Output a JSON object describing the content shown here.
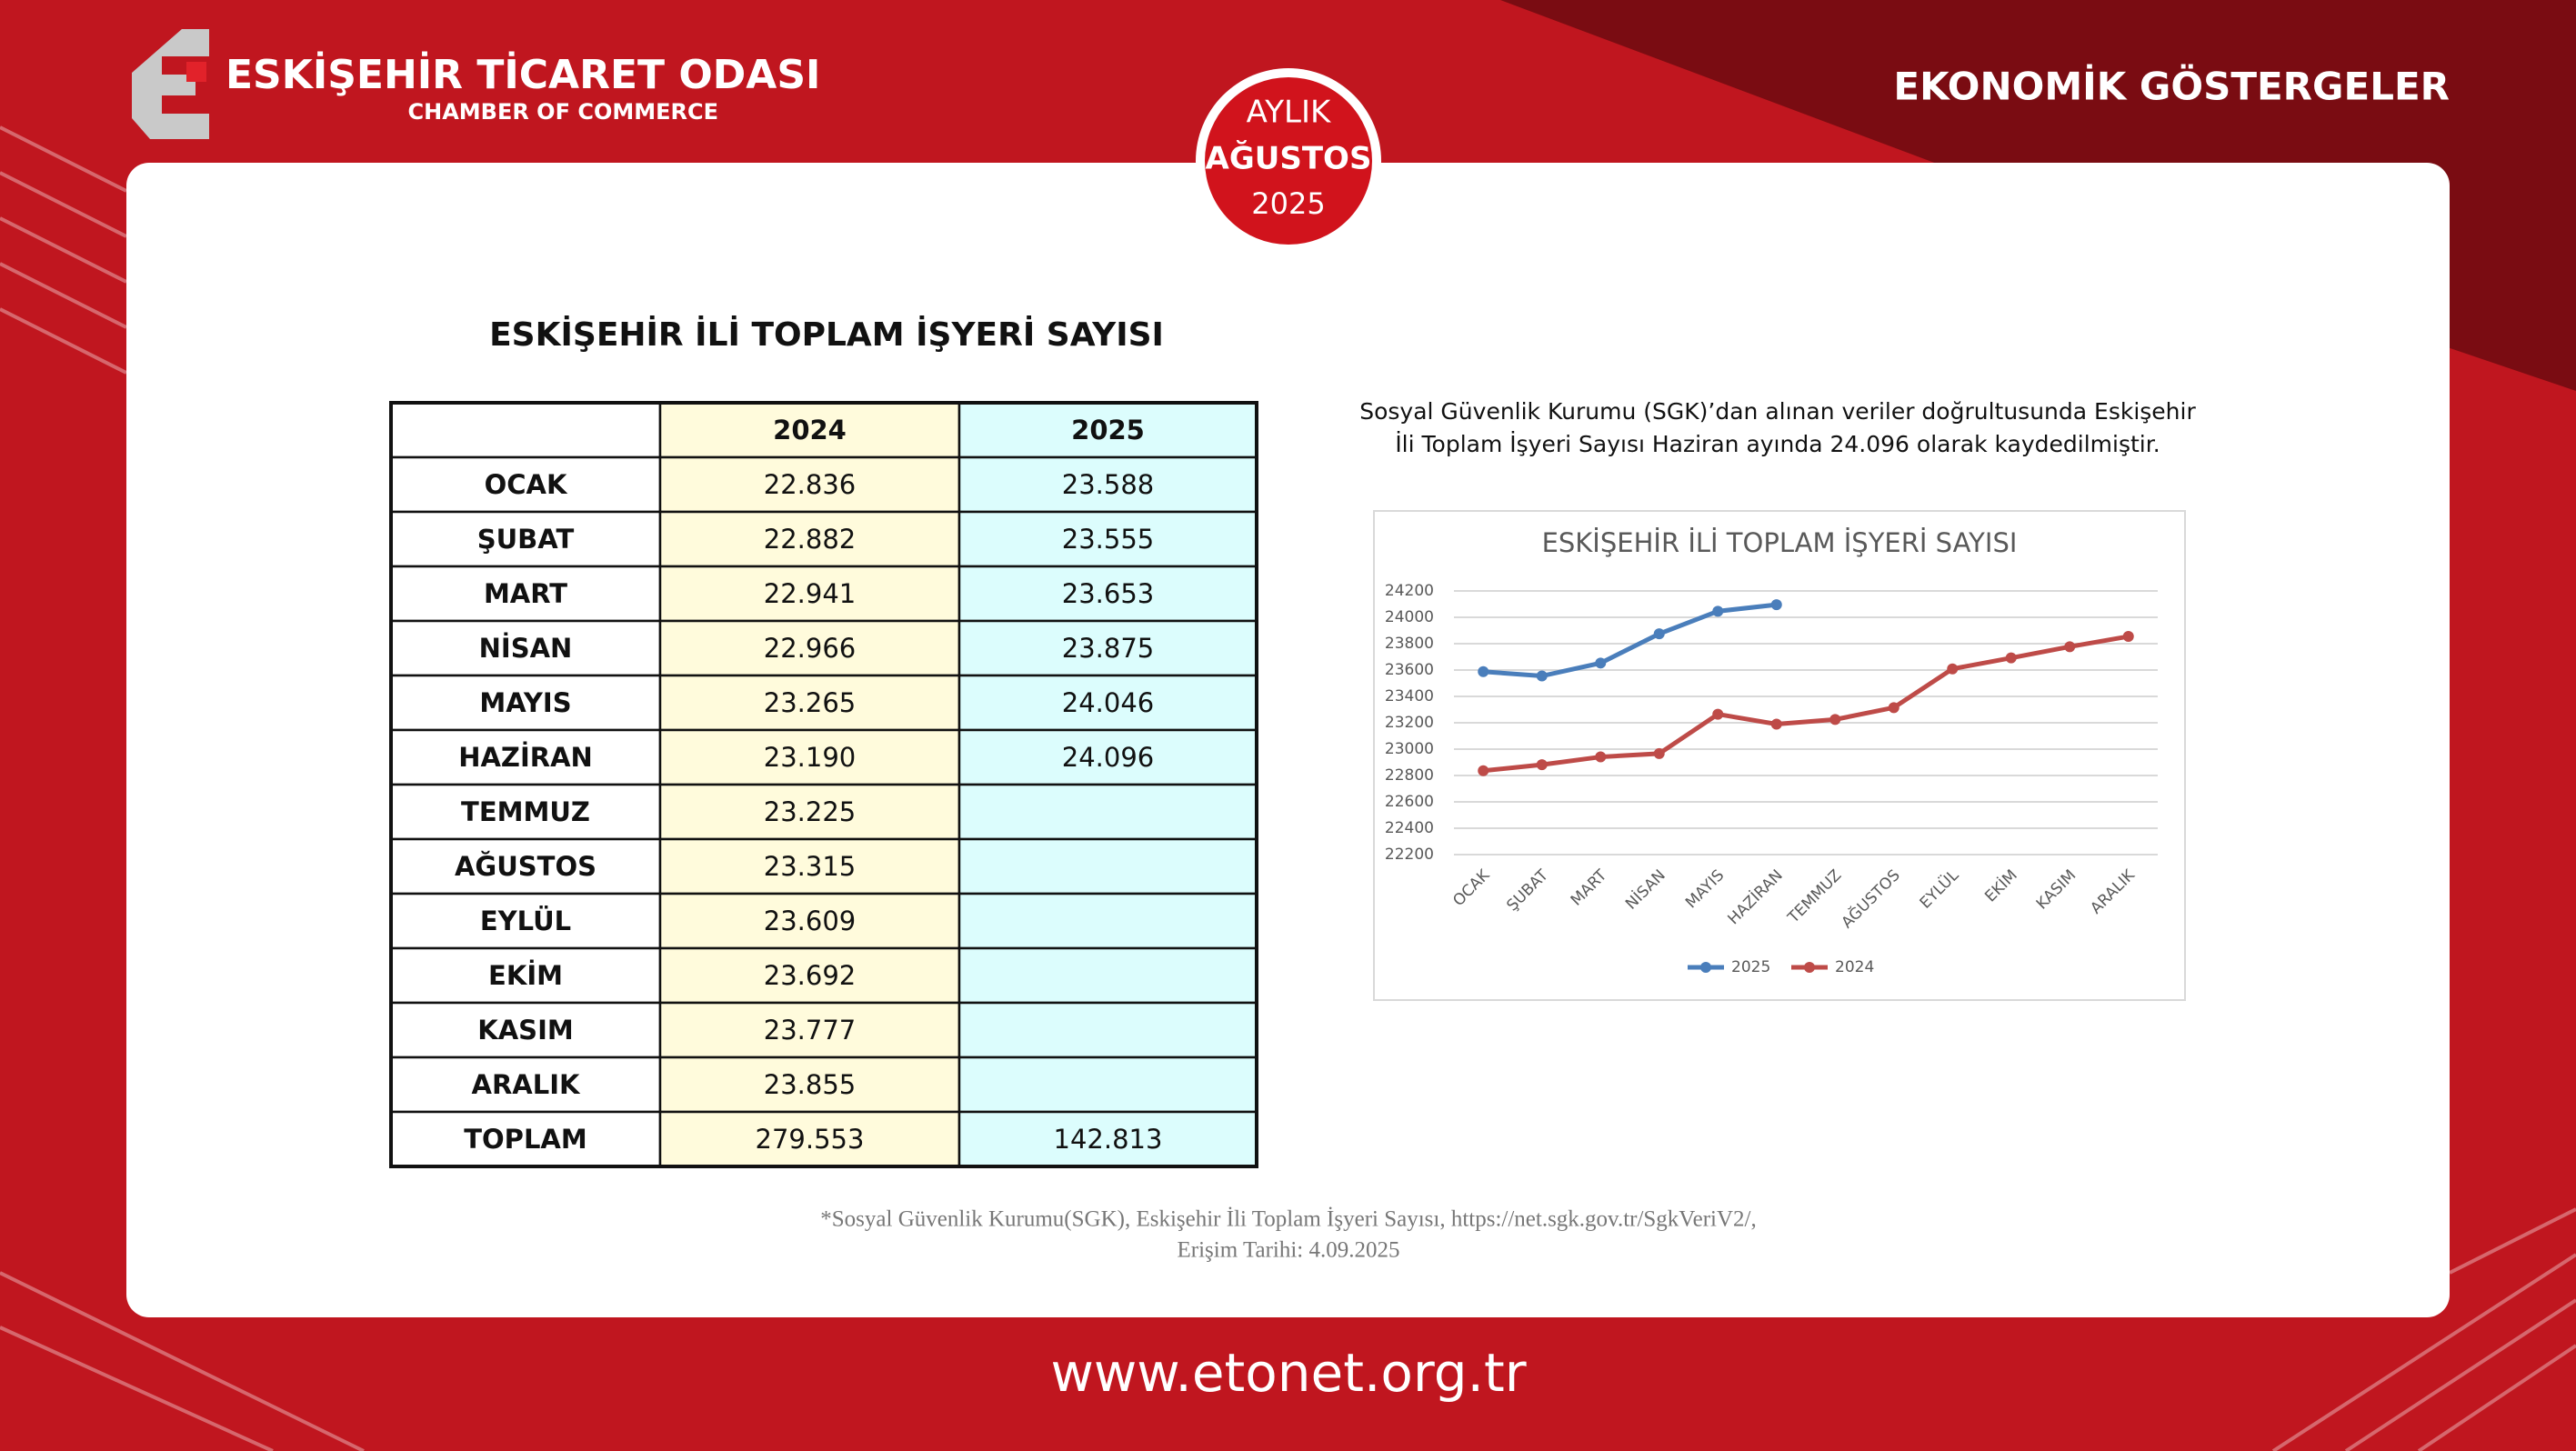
{
  "header": {
    "org_name": "ESKİŞEHİR TİCARET ODASI",
    "org_subtitle": "CHAMBER OF COMMERCE",
    "section": "EKONOMİK GÖSTERGELER"
  },
  "badge": {
    "period": "AYLIK",
    "month": "AĞUSTOS",
    "year": "2025"
  },
  "table": {
    "title": "ESKİŞEHİR İLİ TOPLAM İŞYERİ SAYISI",
    "columns": [
      "2024",
      "2025"
    ],
    "rows": [
      [
        "OCAK",
        "22.836",
        "23.588"
      ],
      [
        "ŞUBAT",
        "22.882",
        "23.555"
      ],
      [
        "MART",
        "22.941",
        "23.653"
      ],
      [
        "NİSAN",
        "22.966",
        "23.875"
      ],
      [
        "MAYIS",
        "23.265",
        "24.046"
      ],
      [
        "HAZİRAN",
        "23.190",
        "24.096"
      ],
      [
        "TEMMUZ",
        "23.225",
        null
      ],
      [
        "AĞUSTOS",
        "23.315",
        null
      ],
      [
        "EYLÜL",
        "23.609",
        null
      ],
      [
        "EKİM",
        "23.692",
        null
      ],
      [
        "KASIM",
        "23.777",
        null
      ],
      [
        "ARALIK",
        "23.855",
        null
      ],
      [
        "TOPLAM",
        "279.553",
        "142.813"
      ]
    ]
  },
  "description": {
    "lines": [
      "Sosyal Güvenlik Kurumu (SGK)’dan alınan veriler doğrultusunda Eskişehir",
      "İli Toplam İşyeri Sayısı Haziran ayında 24.096 olarak kaydedilmiştir."
    ]
  },
  "chart_data": {
    "type": "line",
    "title": "ESKİŞEHİR İLİ TOPLAM İŞYERİ SAYISI",
    "categories": [
      "OCAK",
      "ŞUBAT",
      "MART",
      "NİSAN",
      "MAYIS",
      "HAZİRAN",
      "TEMMUZ",
      "AĞUSTOS",
      "EYLÜL",
      "EKİM",
      "KASIM",
      "ARALIK"
    ],
    "series": [
      {
        "name": "2025",
        "color": "#4a7ebb",
        "values": [
          23588,
          23555,
          23653,
          23875,
          24046,
          24096,
          null,
          null,
          null,
          null,
          null,
          null
        ]
      },
      {
        "name": "2024",
        "color": "#be4b48",
        "values": [
          22836,
          22882,
          22941,
          22966,
          23265,
          23190,
          23225,
          23315,
          23609,
          23692,
          23777,
          23855
        ]
      }
    ],
    "ylim": [
      22200,
      24200
    ],
    "yticks": [
      22200,
      22400,
      22600,
      22800,
      23000,
      23200,
      23400,
      23600,
      23800,
      24000,
      24200
    ],
    "grid": true,
    "legend": "bottom"
  },
  "footnote": {
    "lines": [
      "*Sosyal Güvenlik Kurumu(SGK), Eskişehir İli Toplam İşyeri Sayısı, https://net.sgk.gov.tr/SgkVeriV2/,",
      "Erişim Tarihi: 4.09.2025"
    ]
  },
  "footer": {
    "website": "www.etonet.org.tr"
  }
}
